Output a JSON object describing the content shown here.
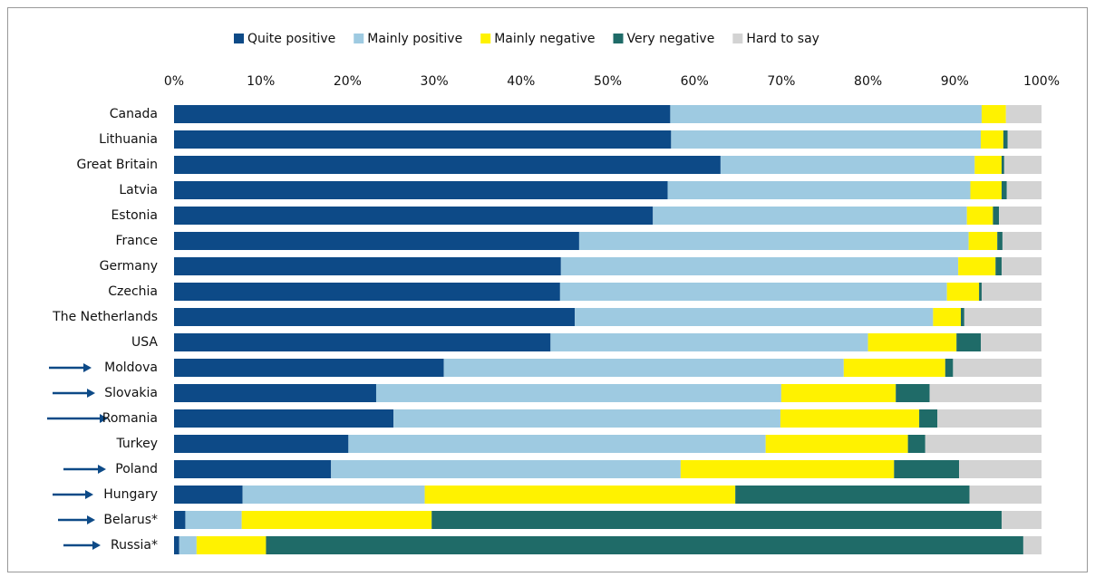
{
  "chart_data": {
    "type": "stacked_bar_horizontal",
    "categories": [
      "Canada",
      "Lithuania",
      "Great Britain",
      "Latvia",
      "Estonia",
      "France",
      "Germany",
      "Czechia",
      "The Netherlands",
      "USA",
      "Moldova",
      "Slovakia",
      "Romania",
      "Turkey",
      "Poland",
      "Hungary",
      "Belarus*",
      "Russia*"
    ],
    "series": [
      {
        "name": "Quite positive",
        "color": "#0d4a87",
        "values": [
          57.2,
          57.3,
          63.0,
          56.9,
          55.2,
          46.7,
          44.6,
          44.5,
          46.2,
          43.4,
          31.1,
          23.3,
          25.3,
          20.1,
          18.1,
          7.9,
          1.3,
          0.6
        ]
      },
      {
        "name": "Mainly positive",
        "color": "#9ecae1",
        "values": [
          35.9,
          35.7,
          29.3,
          34.9,
          36.2,
          44.9,
          45.8,
          44.6,
          41.3,
          36.6,
          46.1,
          46.7,
          44.6,
          48.1,
          40.3,
          21.0,
          6.5,
          2.0
        ]
      },
      {
        "name": "Mainly negative",
        "color": "#fff200",
        "values": [
          2.8,
          2.6,
          3.1,
          3.6,
          3.0,
          3.3,
          4.3,
          3.7,
          3.2,
          10.2,
          11.7,
          13.2,
          16.0,
          16.4,
          24.6,
          35.8,
          21.9,
          8.0
        ]
      },
      {
        "name": "Very negative",
        "color": "#1f6b68",
        "values": [
          0,
          0.5,
          0.3,
          0.6,
          0.7,
          0.6,
          0.7,
          0.3,
          0.4,
          2.8,
          0.9,
          3.9,
          2.1,
          2.0,
          7.5,
          27.0,
          65.7,
          87.3
        ]
      },
      {
        "name": "Hard to say",
        "color": "#d3d3d3",
        "values": [
          4.1,
          3.9,
          4.3,
          4.0,
          4.9,
          4.5,
          4.6,
          6.9,
          8.9,
          7.0,
          10.2,
          12.9,
          12.0,
          13.4,
          9.5,
          8.3,
          4.6,
          2.1
        ]
      }
    ],
    "xlim": [
      0,
      100
    ],
    "xticks": [
      {
        "value": 0,
        "label": "0%"
      },
      {
        "value": 10,
        "label": "10%"
      },
      {
        "value": 20,
        "label": "20%"
      },
      {
        "value": 30,
        "label": "30%"
      },
      {
        "value": 40,
        "label": "40%"
      },
      {
        "value": 50,
        "label": "50%"
      },
      {
        "value": 60,
        "label": "60%"
      },
      {
        "value": 70,
        "label": "70%"
      },
      {
        "value": 80,
        "label": "80%"
      },
      {
        "value": 90,
        "label": "90%"
      },
      {
        "value": 100,
        "label": "100%"
      }
    ],
    "legend": "top"
  }
}
